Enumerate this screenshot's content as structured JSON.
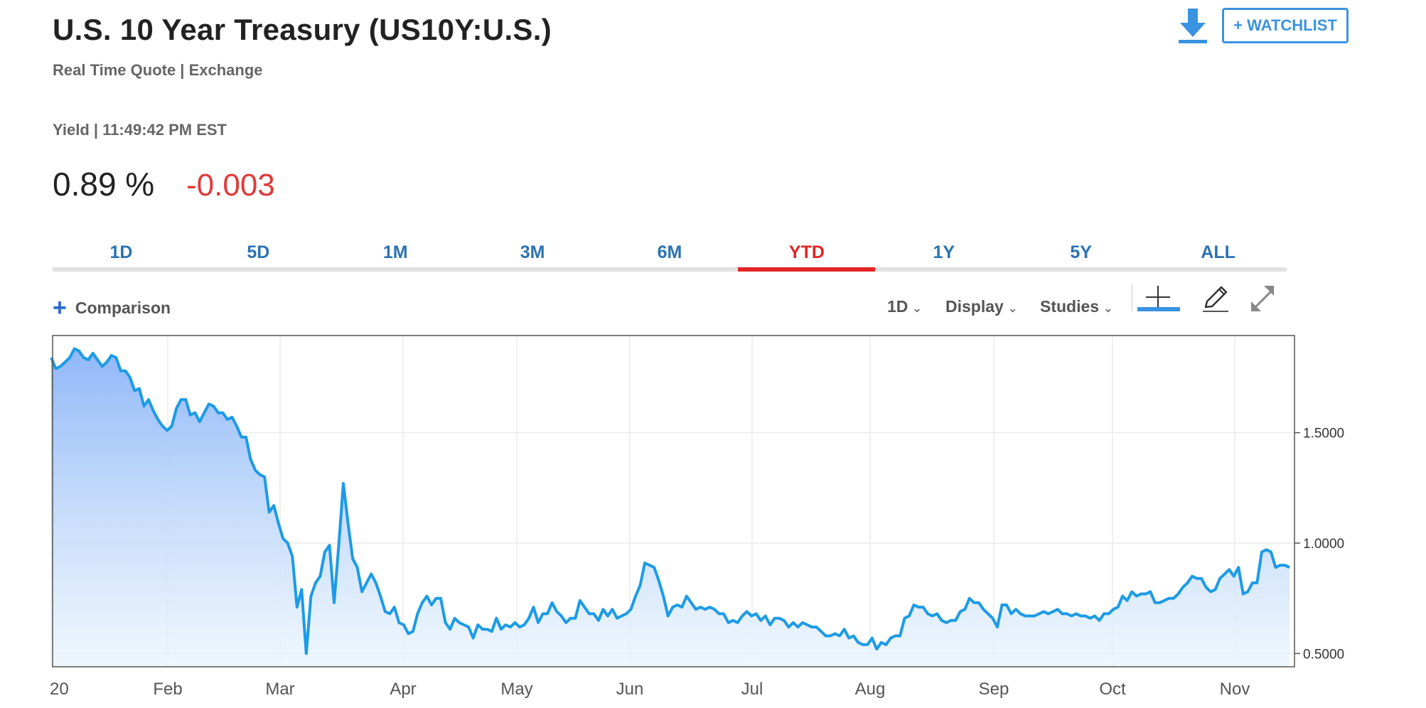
{
  "header": {
    "title": "U.S. 10 Year Treasury (US10Y:U.S.)",
    "subtitle": "Real Time Quote | Exchange",
    "yield_line": "Yield | 11:49:42 PM EST",
    "price": "0.89 %",
    "change": "-0.003",
    "change_color": "#e03a3a",
    "watchlist_label": "+ WATCHLIST",
    "download_icon": "download-icon"
  },
  "tabs": [
    {
      "label": "1D",
      "active": false
    },
    {
      "label": "5D",
      "active": false
    },
    {
      "label": "1M",
      "active": false
    },
    {
      "label": "3M",
      "active": false
    },
    {
      "label": "6M",
      "active": false
    },
    {
      "label": "YTD",
      "active": true
    },
    {
      "label": "1Y",
      "active": false
    },
    {
      "label": "5Y",
      "active": false
    },
    {
      "label": "ALL",
      "active": false
    }
  ],
  "toolbar": {
    "comparison_label": "Comparison",
    "interval_label": "1D",
    "display_label": "Display",
    "studies_label": "Studies",
    "icons": [
      "crosshair-icon",
      "pencil-icon",
      "expand-icon"
    ]
  },
  "colors": {
    "accent": "#2b73b3",
    "active_tab": "#e22424",
    "line": "#1c9be6"
  },
  "chart_data": {
    "type": "area",
    "title": "",
    "xlabel": "",
    "ylabel": "",
    "x_ticks": [
      "20",
      "Feb",
      "Mar",
      "Apr",
      "May",
      "Jun",
      "Jul",
      "Aug",
      "Sep",
      "Oct",
      "Nov"
    ],
    "y_ticks": [
      "1.5000",
      "1.0000",
      "0.5000"
    ],
    "ylim": [
      0.44,
      1.94
    ],
    "grid": true,
    "series": [
      {
        "values": [
          1.84,
          1.79,
          1.8,
          1.82,
          1.84,
          1.88,
          1.87,
          1.84,
          1.83,
          1.86,
          1.83,
          1.8,
          1.82,
          1.85,
          1.84,
          1.78,
          1.78,
          1.75,
          1.69,
          1.7,
          1.62,
          1.65,
          1.6,
          1.56,
          1.53,
          1.51,
          1.53,
          1.61,
          1.65,
          1.65,
          1.58,
          1.59,
          1.55,
          1.59,
          1.63,
          1.62,
          1.59,
          1.59,
          1.56,
          1.57,
          1.53,
          1.48,
          1.48,
          1.38,
          1.33,
          1.31,
          1.3,
          1.14,
          1.17,
          1.09,
          1.02,
          1.0,
          0.94,
          0.71,
          0.79,
          0.5,
          0.76,
          0.82,
          0.85,
          0.96,
          0.99,
          0.73,
          0.99,
          1.27,
          1.09,
          0.93,
          0.89,
          0.78,
          0.82,
          0.86,
          0.82,
          0.76,
          0.69,
          0.68,
          0.71,
          0.64,
          0.63,
          0.59,
          0.6,
          0.68,
          0.73,
          0.76,
          0.72,
          0.75,
          0.75,
          0.64,
          0.61,
          0.66,
          0.64,
          0.63,
          0.62,
          0.57,
          0.63,
          0.61,
          0.61,
          0.6,
          0.66,
          0.61,
          0.63,
          0.62,
          0.64,
          0.62,
          0.63,
          0.66,
          0.71,
          0.64,
          0.68,
          0.68,
          0.73,
          0.69,
          0.67,
          0.64,
          0.66,
          0.66,
          0.74,
          0.71,
          0.68,
          0.68,
          0.65,
          0.7,
          0.67,
          0.7,
          0.66,
          0.67,
          0.68,
          0.7,
          0.76,
          0.81,
          0.91,
          0.9,
          0.89,
          0.83,
          0.76,
          0.67,
          0.71,
          0.72,
          0.71,
          0.76,
          0.73,
          0.7,
          0.71,
          0.7,
          0.71,
          0.7,
          0.68,
          0.68,
          0.64,
          0.65,
          0.64,
          0.67,
          0.69,
          0.67,
          0.68,
          0.65,
          0.67,
          0.63,
          0.66,
          0.66,
          0.65,
          0.62,
          0.64,
          0.62,
          0.64,
          0.63,
          0.62,
          0.62,
          0.6,
          0.58,
          0.58,
          0.59,
          0.58,
          0.61,
          0.57,
          0.58,
          0.55,
          0.54,
          0.54,
          0.57,
          0.52,
          0.55,
          0.54,
          0.57,
          0.58,
          0.58,
          0.66,
          0.67,
          0.72,
          0.71,
          0.71,
          0.68,
          0.67,
          0.68,
          0.65,
          0.64,
          0.65,
          0.65,
          0.69,
          0.7,
          0.75,
          0.73,
          0.73,
          0.7,
          0.68,
          0.66,
          0.62,
          0.72,
          0.72,
          0.68,
          0.7,
          0.68,
          0.67,
          0.67,
          0.67,
          0.68,
          0.69,
          0.68,
          0.69,
          0.7,
          0.68,
          0.68,
          0.67,
          0.68,
          0.67,
          0.67,
          0.66,
          0.67,
          0.65,
          0.68,
          0.68,
          0.7,
          0.71,
          0.76,
          0.74,
          0.78,
          0.76,
          0.77,
          0.77,
          0.78,
          0.73,
          0.73,
          0.74,
          0.75,
          0.75,
          0.77,
          0.8,
          0.82,
          0.85,
          0.84,
          0.84,
          0.8,
          0.78,
          0.79,
          0.84,
          0.86,
          0.88,
          0.85,
          0.89,
          0.77,
          0.78,
          0.82,
          0.82,
          0.96,
          0.97,
          0.96,
          0.89,
          0.9,
          0.9,
          0.89
        ]
      }
    ]
  }
}
